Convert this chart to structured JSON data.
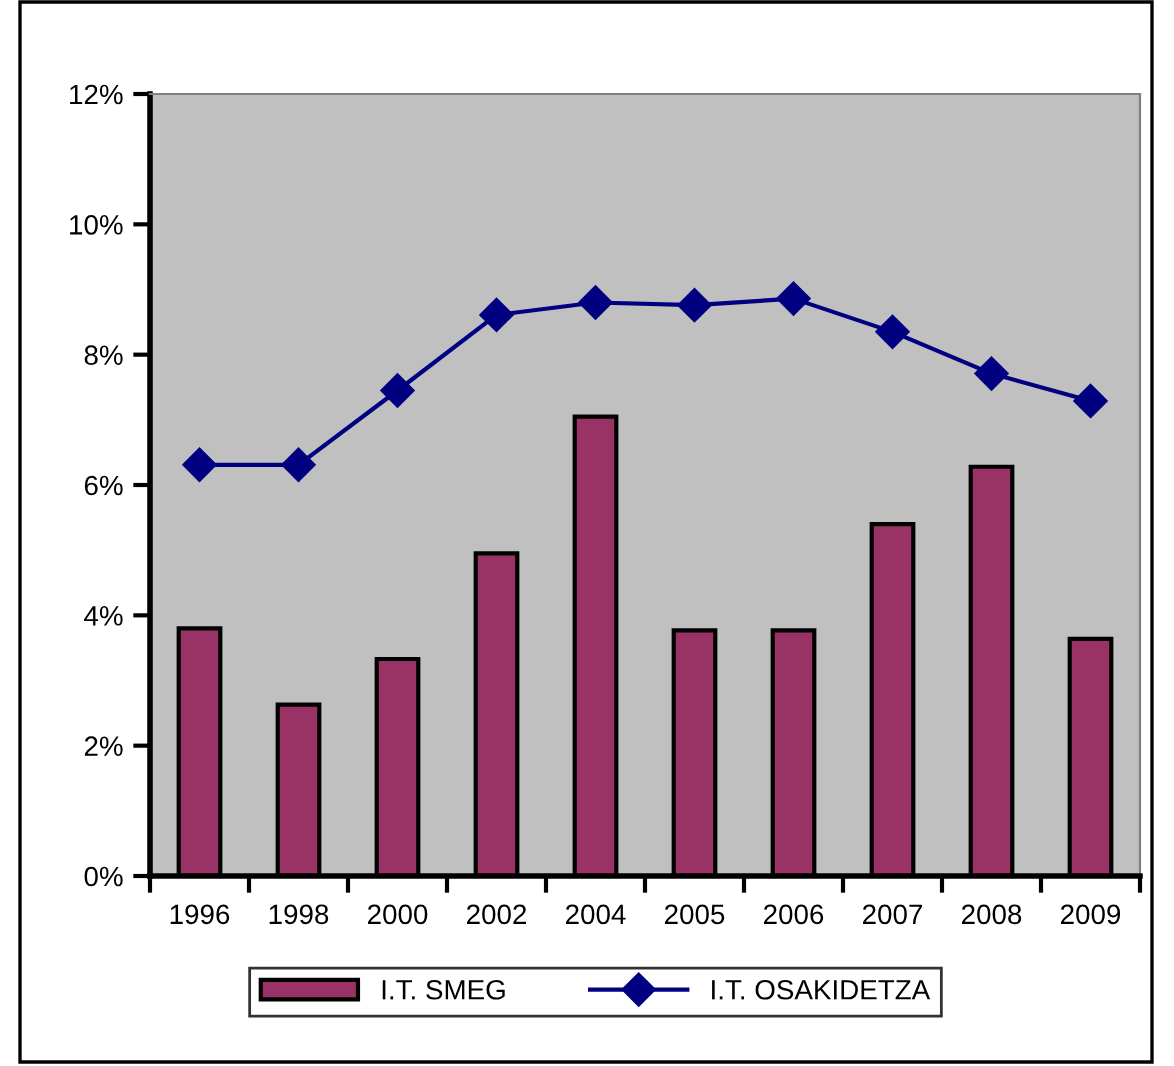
{
  "chart_data": {
    "type": "bar",
    "categories": [
      "1996",
      "1998",
      "2000",
      "2002",
      "2004",
      "2005",
      "2006",
      "2007",
      "2008",
      "2009"
    ],
    "series": [
      {
        "name": "I.T. SMEG",
        "color": "#993366",
        "values": [
          3.8,
          2.63,
          3.33,
          4.95,
          7.05,
          3.77,
          3.77,
          5.4,
          6.28,
          3.64
        ]
      },
      {
        "name": "I.T. OSAKIDETZA",
        "type": "line",
        "color": "#000080",
        "marker": "diamond",
        "line_style": "solid",
        "values": [
          6.31,
          6.31,
          7.45,
          8.61,
          8.8,
          8.76,
          8.86,
          8.35,
          7.71,
          7.29
        ]
      }
    ],
    "ylim": [
      0,
      12
    ],
    "yticks": [
      {
        "value": 0,
        "label": "0%"
      },
      {
        "value": 2,
        "label": "2%"
      },
      {
        "value": 4,
        "label": "4%"
      },
      {
        "value": 6,
        "label": "6%"
      },
      {
        "value": 8,
        "label": "8%"
      },
      {
        "value": 10,
        "label": "10%"
      },
      {
        "value": 12,
        "label": "12%"
      }
    ],
    "grid": false,
    "legend": "bottom"
  }
}
